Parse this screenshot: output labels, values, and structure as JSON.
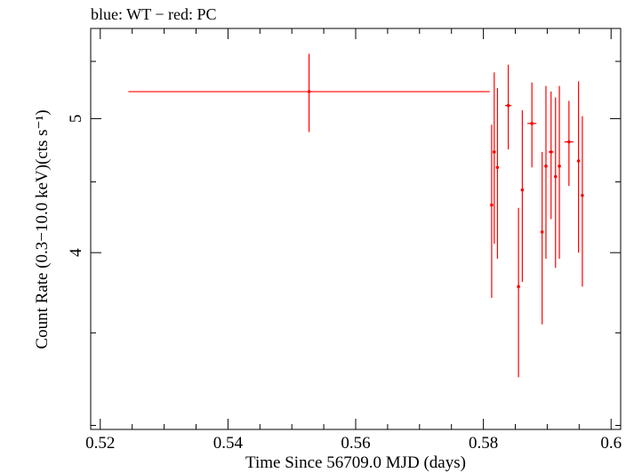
{
  "chart_data": {
    "type": "scatter",
    "title": "blue: WT − red: PC",
    "xlabel": "Time Since 56709.0 MJD (days)",
    "ylabel": "Count Rate (0.3−10.0 keV)(cts s⁻¹)",
    "xlim": [
      0.5185,
      0.6015
    ],
    "ylim": [
      2.98,
      5.81
    ],
    "y_scale": "log",
    "grid": false,
    "x_ticks": {
      "major": [
        0.52,
        0.54,
        0.56,
        0.58,
        0.6
      ],
      "major_labels": [
        "0.52",
        "0.54",
        "0.56",
        "0.58",
        "0.6"
      ],
      "minor_step": 0.005
    },
    "y_ticks": {
      "major": [
        4,
        5
      ],
      "major_labels": [
        "4",
        "5"
      ],
      "minor": [
        3,
        3.5,
        4.5,
        5.5
      ]
    },
    "series": [
      {
        "name": "PC",
        "color": "#ff0000",
        "points": [
          {
            "x": 0.5527,
            "y": 5.23,
            "xerr": [
              0.0283,
              0.0283
            ],
            "yerr": [
              0.34,
              0.34
            ]
          },
          {
            "x": 0.5813,
            "y": 4.33,
            "xerr": [
              0.0002,
              0.0002
            ],
            "yerr": [
              0.62,
              0.62
            ]
          },
          {
            "x": 0.5817,
            "y": 4.73,
            "xerr": [
              0.0002,
              0.0002
            ],
            "yerr": [
              0.67,
              0.67
            ]
          },
          {
            "x": 0.5822,
            "y": 4.61,
            "xerr": [
              0.0002,
              0.0002
            ],
            "yerr": [
              0.65,
              0.65
            ]
          },
          {
            "x": 0.5839,
            "y": 5.11,
            "xerr": [
              0.0005,
              0.0005
            ],
            "yerr": [
              0.36,
              0.36
            ]
          },
          {
            "x": 0.5855,
            "y": 3.78,
            "xerr": [
              0.0002,
              0.0002
            ],
            "yerr": [
              0.53,
              0.53
            ]
          },
          {
            "x": 0.5861,
            "y": 4.44,
            "xerr": [
              0.0002,
              0.0002
            ],
            "yerr": [
              0.63,
              0.63
            ]
          },
          {
            "x": 0.5876,
            "y": 4.96,
            "xerr": [
              0.0007,
              0.0007
            ],
            "yerr": [
              0.35,
              0.35
            ]
          },
          {
            "x": 0.5892,
            "y": 4.14,
            "xerr": [
              0.0002,
              0.0002
            ],
            "yerr": [
              0.59,
              0.59
            ]
          },
          {
            "x": 0.5898,
            "y": 4.62,
            "xerr": [
              0.0002,
              0.0002
            ],
            "yerr": [
              0.66,
              0.66
            ]
          },
          {
            "x": 0.5906,
            "y": 4.73,
            "xerr": [
              0.0004,
              0.0004
            ],
            "yerr": [
              0.5,
              0.5
            ]
          },
          {
            "x": 0.5913,
            "y": 4.54,
            "xerr": [
              0.0002,
              0.0002
            ],
            "yerr": [
              0.64,
              0.64
            ]
          },
          {
            "x": 0.5919,
            "y": 4.62,
            "xerr": [
              0.0002,
              0.0002
            ],
            "yerr": [
              0.66,
              0.66
            ]
          },
          {
            "x": 0.5934,
            "y": 4.81,
            "xerr": [
              0.0007,
              0.0007
            ],
            "yerr": [
              0.34,
              0.34
            ]
          },
          {
            "x": 0.5949,
            "y": 4.66,
            "xerr": [
              0.0002,
              0.0002
            ],
            "yerr": [
              0.66,
              0.66
            ]
          },
          {
            "x": 0.5955,
            "y": 4.4,
            "xerr": [
              0.0002,
              0.0002
            ],
            "yerr": [
              0.62,
              0.62
            ]
          }
        ]
      }
    ]
  }
}
